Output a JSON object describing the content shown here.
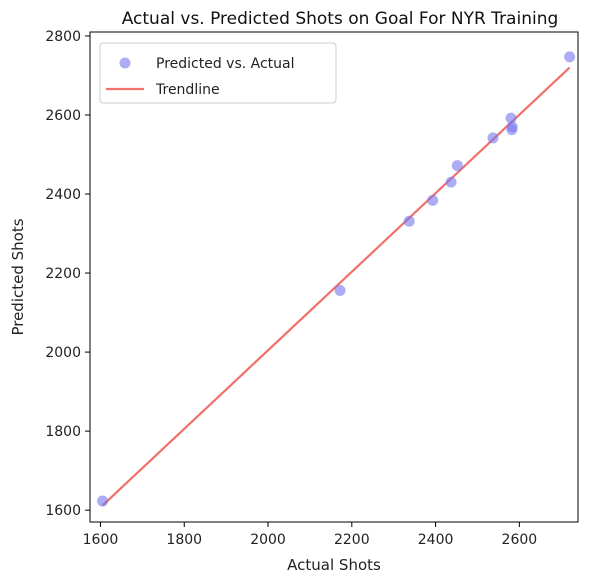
{
  "chart_data": {
    "type": "scatter",
    "title": "Actual vs. Predicted Shots on Goal For NYR Training",
    "xlabel": "Actual Shots",
    "ylabel": "Predicted Shots",
    "xlim": [
      1575,
      2740
    ],
    "ylim": [
      1570,
      2810
    ],
    "xticks": [
      1600,
      1800,
      2000,
      2200,
      2400,
      2600
    ],
    "yticks": [
      1600,
      1800,
      2000,
      2200,
      2400,
      2600,
      2800
    ],
    "grid": false,
    "legend": {
      "placement": "top-left",
      "entries": [
        "Predicted vs. Actual",
        "Trendline"
      ]
    },
    "series": [
      {
        "name": "Predicted vs. Actual",
        "kind": "scatter",
        "color": "#7777ee",
        "points": [
          {
            "x": 1605,
            "y": 1623
          },
          {
            "x": 2172,
            "y": 2156
          },
          {
            "x": 2337,
            "y": 2331
          },
          {
            "x": 2393,
            "y": 2384
          },
          {
            "x": 2437,
            "y": 2430
          },
          {
            "x": 2452,
            "y": 2472
          },
          {
            "x": 2537,
            "y": 2542
          },
          {
            "x": 2580,
            "y": 2592
          },
          {
            "x": 2582,
            "y": 2563
          },
          {
            "x": 2583,
            "y": 2570
          },
          {
            "x": 2720,
            "y": 2747
          }
        ]
      },
      {
        "name": "Trendline",
        "kind": "line",
        "color": "#f0706a",
        "points": [
          {
            "x": 1605,
            "y": 1612
          },
          {
            "x": 2720,
            "y": 2720
          }
        ]
      }
    ]
  }
}
